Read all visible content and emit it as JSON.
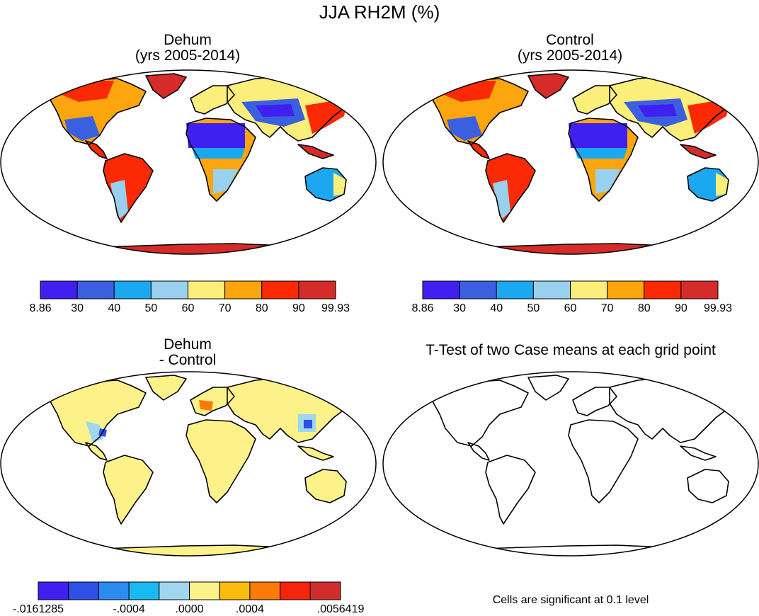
{
  "title": "JJA RH2M (%)",
  "panels": {
    "tl": {
      "title1": "Dehum",
      "title2": "(yrs 2005-2014)"
    },
    "tr": {
      "title1": "Control",
      "title2": "(yrs 2005-2014)"
    },
    "bl": {
      "title1": "Dehum",
      "title2": "- Control"
    },
    "br": {
      "title1": "T-Test of two Case means at each grid point"
    }
  },
  "colorbar_rh": {
    "colors": [
      "#4020f0",
      "#3a60e0",
      "#1ba8f0",
      "#98d0ee",
      "#fbee7a",
      "#fca50c",
      "#fb2a05",
      "#d52c29"
    ],
    "labels": [
      "8.86",
      "30",
      "40",
      "50",
      "60",
      "70",
      "80",
      "90",
      "99.93"
    ]
  },
  "colorbar_diff": {
    "colors": [
      "#4020f0",
      "#2f50e8",
      "#2a8cf0",
      "#19baf2",
      "#a0d6ee",
      "#fdf28a",
      "#fcbc0c",
      "#fc7a08",
      "#f5240c",
      "#d22d2d"
    ],
    "labels": [
      "-.0161285",
      "-.0004",
      ".0000",
      ".0004",
      ".0056419"
    ]
  },
  "note": "Cells are significant at 0.1 level"
}
